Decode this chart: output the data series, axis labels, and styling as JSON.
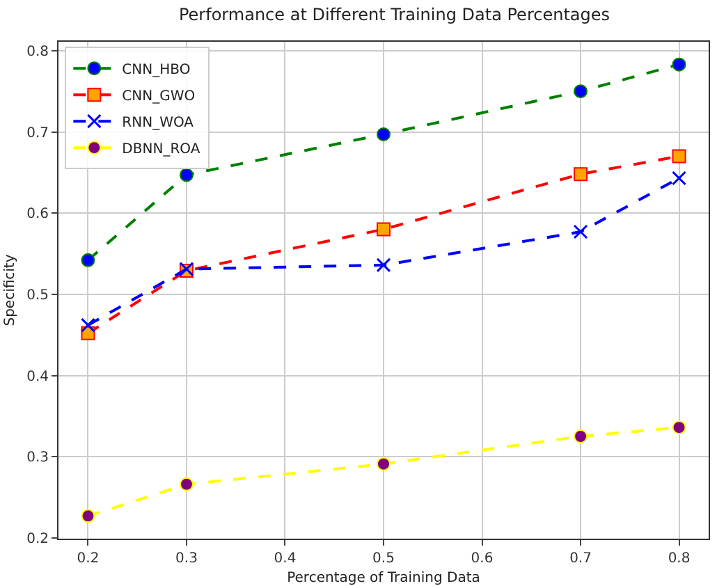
{
  "chart_data": {
    "type": "line",
    "title": "Performance at Different Training Data Percentages",
    "xlabel": "Percentage of Training Data",
    "ylabel": "Specificity",
    "x": [
      0.2,
      0.3,
      0.5,
      0.7,
      0.8
    ],
    "series": [
      {
        "name": "CNN_HBO",
        "color": "#008000",
        "colors": [
          "#0000ff",
          "#0000ff",
          "#0000ff",
          "#0000ff",
          "#0000ff"
        ],
        "marker": "circle",
        "values": [
          0.542,
          0.647,
          0.697,
          0.75,
          0.783
        ]
      },
      {
        "name": "CNN_GWO",
        "color": "#ff0000",
        "colors": [
          "#ffa500",
          "#ffa500",
          "#ffa500",
          "#ffa500",
          "#ffa500"
        ],
        "marker": "square",
        "values": [
          0.452,
          0.529,
          0.58,
          0.648,
          0.67
        ]
      },
      {
        "name": "RNN_WOA",
        "color": "#0000ff",
        "colors": [
          "#0000ff",
          "#0000ff",
          "#0000ff",
          "#0000ff",
          "#0000ff"
        ],
        "marker": "cross",
        "values": [
          0.462,
          0.531,
          0.536,
          0.577,
          0.643
        ]
      },
      {
        "name": "DBNN_ROA",
        "color": "#ffff00",
        "colors": [
          "#800080",
          "#800080",
          "#800080",
          "#800080",
          "#800080"
        ],
        "marker": "circle",
        "values": [
          0.227,
          0.266,
          0.291,
          0.325,
          0.336
        ]
      }
    ],
    "xlim": [
      0.17,
      0.83
    ],
    "xticks": [
      0.2,
      0.3,
      0.4,
      0.5,
      0.6,
      0.7,
      0.8
    ],
    "ylim": [
      0.199,
      0.811
    ],
    "yticks": [
      0.2,
      0.3,
      0.4,
      0.5,
      0.6,
      0.7,
      0.8
    ],
    "grid": true,
    "legend": "top left",
    "line_style": "dashed"
  }
}
